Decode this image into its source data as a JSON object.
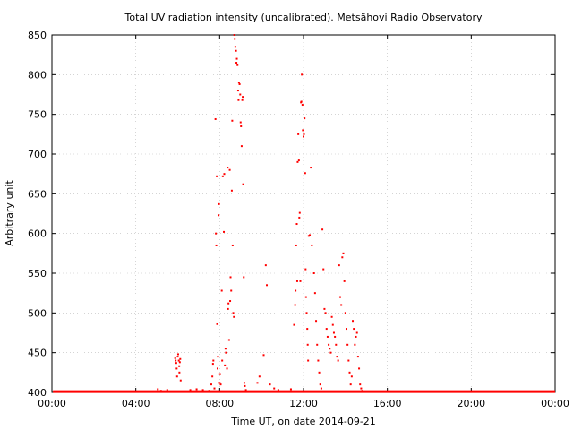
{
  "chart_data": {
    "type": "scatter",
    "title": "Total UV radiation intensity (uncalibrated). Metsähovi Radio Observatory",
    "xlabel": "Time UT, on date 2014-09-21",
    "ylabel": "Arbitrary unit",
    "xlim": [
      0,
      24
    ],
    "ylim": [
      400,
      850
    ],
    "x_ticks": [
      "00:00",
      "04:00",
      "08:00",
      "12:00",
      "16:00",
      "20:00",
      "00:00"
    ],
    "x_tick_values": [
      0,
      4,
      8,
      12,
      16,
      20,
      24
    ],
    "y_ticks": [
      400,
      450,
      500,
      550,
      600,
      650,
      700,
      750,
      800,
      850
    ],
    "grid": true,
    "marker_color": "#ff0000",
    "baseline": {
      "value": 401,
      "x_start": 0.05,
      "x_end": 24
    },
    "series": [
      {
        "values": [
          [
            5.05,
            404
          ],
          [
            5.2,
            402
          ],
          [
            5.5,
            403
          ],
          [
            5.88,
            443
          ],
          [
            5.9,
            440
          ],
          [
            5.93,
            437
          ],
          [
            5.95,
            430
          ],
          [
            5.97,
            420
          ],
          [
            6.0,
            445
          ],
          [
            6.02,
            448
          ],
          [
            6.05,
            440
          ],
          [
            6.07,
            433
          ],
          [
            6.08,
            425
          ],
          [
            6.1,
            438
          ],
          [
            6.12,
            442
          ],
          [
            6.14,
            415
          ],
          [
            6.6,
            403
          ],
          [
            6.9,
            404
          ],
          [
            7.2,
            403
          ],
          [
            7.5,
            402
          ],
          [
            7.6,
            410
          ],
          [
            7.65,
            420
          ],
          [
            7.68,
            436
          ],
          [
            7.7,
            440
          ],
          [
            7.75,
            405
          ],
          [
            7.8,
            744
          ],
          [
            7.82,
            600
          ],
          [
            7.84,
            585
          ],
          [
            7.86,
            672
          ],
          [
            7.88,
            486
          ],
          [
            7.9,
            430
          ],
          [
            7.92,
            445
          ],
          [
            7.95,
            623
          ],
          [
            7.97,
            637
          ],
          [
            8.0,
            412
          ],
          [
            8.02,
            423
          ],
          [
            8.05,
            410
          ],
          [
            8.1,
            528
          ],
          [
            8.12,
            440
          ],
          [
            8.15,
            672
          ],
          [
            8.2,
            602
          ],
          [
            8.22,
            675
          ],
          [
            8.25,
            434
          ],
          [
            8.28,
            455
          ],
          [
            8.3,
            450
          ],
          [
            8.35,
            430
          ],
          [
            8.38,
            683
          ],
          [
            8.4,
            505
          ],
          [
            8.42,
            512
          ],
          [
            8.45,
            466
          ],
          [
            8.48,
            680
          ],
          [
            8.5,
            515
          ],
          [
            8.52,
            545
          ],
          [
            8.55,
            528
          ],
          [
            8.58,
            654
          ],
          [
            8.6,
            742
          ],
          [
            8.62,
            585
          ],
          [
            8.65,
            500
          ],
          [
            8.68,
            495
          ],
          [
            8.7,
            850
          ],
          [
            8.72,
            845
          ],
          [
            8.75,
            835
          ],
          [
            8.78,
            830
          ],
          [
            8.8,
            815
          ],
          [
            8.82,
            820
          ],
          [
            8.85,
            812
          ],
          [
            8.88,
            780
          ],
          [
            8.9,
            768
          ],
          [
            8.92,
            790
          ],
          [
            8.95,
            788
          ],
          [
            8.98,
            775
          ],
          [
            9.0,
            740
          ],
          [
            9.02,
            735
          ],
          [
            9.05,
            710
          ],
          [
            9.08,
            768
          ],
          [
            9.1,
            772
          ],
          [
            9.12,
            662
          ],
          [
            9.15,
            545
          ],
          [
            9.18,
            412
          ],
          [
            9.2,
            408
          ],
          [
            9.25,
            403
          ],
          [
            9.8,
            412
          ],
          [
            9.9,
            420
          ],
          [
            10.1,
            447
          ],
          [
            10.2,
            560
          ],
          [
            10.25,
            535
          ],
          [
            10.4,
            410
          ],
          [
            10.6,
            405
          ],
          [
            10.8,
            403
          ],
          [
            11.4,
            404
          ],
          [
            11.55,
            485
          ],
          [
            11.6,
            510
          ],
          [
            11.62,
            528
          ],
          [
            11.65,
            585
          ],
          [
            11.68,
            612
          ],
          [
            11.7,
            540
          ],
          [
            11.72,
            690
          ],
          [
            11.75,
            725
          ],
          [
            11.78,
            692
          ],
          [
            11.8,
            620
          ],
          [
            11.82,
            626
          ],
          [
            11.85,
            540
          ],
          [
            11.88,
            765
          ],
          [
            11.9,
            766
          ],
          [
            11.92,
            800
          ],
          [
            11.95,
            762
          ],
          [
            11.97,
            730
          ],
          [
            12.0,
            722
          ],
          [
            12.02,
            725
          ],
          [
            12.05,
            745
          ],
          [
            12.08,
            676
          ],
          [
            12.1,
            555
          ],
          [
            12.12,
            520
          ],
          [
            12.15,
            500
          ],
          [
            12.18,
            480
          ],
          [
            12.2,
            460
          ],
          [
            12.22,
            440
          ],
          [
            12.25,
            597
          ],
          [
            12.3,
            598
          ],
          [
            12.35,
            683
          ],
          [
            12.4,
            585
          ],
          [
            12.5,
            550
          ],
          [
            12.55,
            525
          ],
          [
            12.6,
            490
          ],
          [
            12.65,
            460
          ],
          [
            12.7,
            440
          ],
          [
            12.75,
            425
          ],
          [
            12.8,
            410
          ],
          [
            12.85,
            405
          ],
          [
            12.9,
            605
          ],
          [
            12.95,
            555
          ],
          [
            13.0,
            505
          ],
          [
            13.05,
            500
          ],
          [
            13.1,
            480
          ],
          [
            13.15,
            470
          ],
          [
            13.2,
            460
          ],
          [
            13.25,
            455
          ],
          [
            13.3,
            450
          ],
          [
            13.35,
            495
          ],
          [
            13.4,
            485
          ],
          [
            13.45,
            475
          ],
          [
            13.5,
            470
          ],
          [
            13.55,
            460
          ],
          [
            13.6,
            445
          ],
          [
            13.65,
            440
          ],
          [
            13.7,
            560
          ],
          [
            13.75,
            520
          ],
          [
            13.8,
            510
          ],
          [
            13.85,
            570
          ],
          [
            13.9,
            575
          ],
          [
            13.95,
            540
          ],
          [
            14.0,
            500
          ],
          [
            14.05,
            480
          ],
          [
            14.1,
            460
          ],
          [
            14.15,
            440
          ],
          [
            14.2,
            425
          ],
          [
            14.25,
            410
          ],
          [
            14.3,
            420
          ],
          [
            14.35,
            490
          ],
          [
            14.4,
            480
          ],
          [
            14.45,
            460
          ],
          [
            14.5,
            470
          ],
          [
            14.55,
            475
          ],
          [
            14.6,
            445
          ],
          [
            14.65,
            430
          ],
          [
            14.7,
            410
          ],
          [
            14.75,
            405
          ],
          [
            14.8,
            402
          ]
        ]
      }
    ]
  }
}
